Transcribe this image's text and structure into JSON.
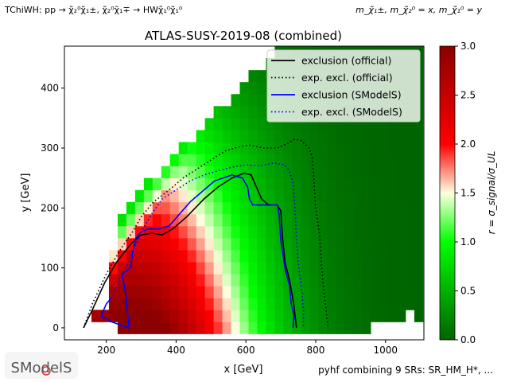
{
  "header": {
    "process": "TChiWH: pp → χ̃₂⁰χ̃₁±, χ̃₂⁰χ̃₁∓ → HWχ̃₁⁰χ̃₁⁰",
    "mass_relation": "m_χ̃₁±, m_χ̃₂⁰ = x, m_χ̃₁⁰ = y"
  },
  "footer": {
    "combination": "pyhf combining 9 SRs: SR_HM_H*, ...",
    "logo_text": "SModelS"
  },
  "chart_data": {
    "type": "heatmap",
    "title": "ATLAS-SUSY-2019-08 (combined)",
    "xlabel": "x [GeV]",
    "ylabel": "y [GeV]",
    "xlim": [
      80,
      1110
    ],
    "ylim": [
      -20,
      470
    ],
    "x_ticks": [
      200,
      400,
      600,
      800,
      1000
    ],
    "y_ticks": [
      0,
      100,
      200,
      300,
      400
    ],
    "colorbar": {
      "label": "r = σ_signal/σ_UL",
      "range": [
        0,
        3.0
      ],
      "ticks": [
        "0.0",
        "0.5",
        "1.0",
        "1.5",
        "2.0",
        "2.5",
        "3.0"
      ],
      "colors": [
        "#006400",
        "#00ff00",
        "#ffffe0",
        "#ff0000",
        "#8b0000"
      ]
    },
    "grid": false,
    "legend_position": "top-right",
    "legend": [
      {
        "label": "exclusion (official)",
        "color": "#000000",
        "style": "solid"
      },
      {
        "label": "exp. excl. (official)",
        "color": "#000000",
        "style": "dotted"
      },
      {
        "label": "exclusion (SModelS)",
        "color": "#0000ff",
        "style": "solid"
      },
      {
        "label": "exp. excl. (SModelS)",
        "color": "#0000ff",
        "style": "dotted"
      }
    ],
    "grid_cells": {
      "x_step": 25,
      "y_step": 20,
      "description": "r on a 25 GeV x 20 GeV grid"
    },
    "series": [
      {
        "name": "exclusion (official)",
        "color": "#000000",
        "style": "solid",
        "points": [
          [
            135,
            0
          ],
          [
            160,
            30
          ],
          [
            195,
            75
          ],
          [
            230,
            110
          ],
          [
            270,
            140
          ],
          [
            300,
            155
          ],
          [
            330,
            158
          ],
          [
            360,
            155
          ],
          [
            390,
            165
          ],
          [
            430,
            185
          ],
          [
            480,
            215
          ],
          [
            520,
            235
          ],
          [
            560,
            250
          ],
          [
            595,
            258
          ],
          [
            615,
            255
          ],
          [
            630,
            235
          ],
          [
            645,
            215
          ],
          [
            665,
            205
          ],
          [
            690,
            205
          ],
          [
            700,
            195
          ],
          [
            705,
            150
          ],
          [
            712,
            110
          ],
          [
            725,
            80
          ],
          [
            737,
            40
          ],
          [
            745,
            0
          ]
        ]
      },
      {
        "name": "exp. excl. (official)",
        "color": "#000000",
        "style": "dotted",
        "points": [
          [
            135,
            0
          ],
          [
            160,
            40
          ],
          [
            200,
            90
          ],
          [
            240,
            130
          ],
          [
            275,
            160
          ],
          [
            300,
            185
          ],
          [
            335,
            210
          ],
          [
            380,
            230
          ],
          [
            420,
            250
          ],
          [
            460,
            265
          ],
          [
            500,
            280
          ],
          [
            540,
            295
          ],
          [
            580,
            302
          ],
          [
            610,
            305
          ],
          [
            650,
            300
          ],
          [
            690,
            300
          ],
          [
            720,
            308
          ],
          [
            740,
            315
          ],
          [
            760,
            312
          ],
          [
            780,
            300
          ],
          [
            790,
            285
          ],
          [
            795,
            245
          ],
          [
            800,
            200
          ],
          [
            810,
            160
          ],
          [
            815,
            120
          ],
          [
            820,
            80
          ],
          [
            828,
            40
          ],
          [
            835,
            0
          ]
        ]
      },
      {
        "name": "exclusion (SModelS)",
        "color": "#0000ff",
        "style": "solid",
        "points": [
          [
            215,
            50
          ],
          [
            200,
            40
          ],
          [
            185,
            20
          ],
          [
            215,
            10
          ],
          [
            240,
            5
          ],
          [
            265,
            0
          ],
          [
            260,
            30
          ],
          [
            255,
            60
          ],
          [
            245,
            90
          ],
          [
            270,
            100
          ],
          [
            275,
            125
          ],
          [
            285,
            150
          ],
          [
            300,
            160
          ],
          [
            320,
            165
          ],
          [
            350,
            165
          ],
          [
            380,
            170
          ],
          [
            410,
            190
          ],
          [
            440,
            210
          ],
          [
            470,
            225
          ],
          [
            510,
            245
          ],
          [
            560,
            255
          ],
          [
            590,
            250
          ],
          [
            605,
            235
          ],
          [
            610,
            215
          ],
          [
            620,
            205
          ],
          [
            650,
            205
          ],
          [
            690,
            205
          ],
          [
            695,
            190
          ],
          [
            700,
            145
          ],
          [
            712,
            100
          ],
          [
            725,
            70
          ],
          [
            730,
            40
          ],
          [
            738,
            20
          ],
          [
            735,
            0
          ]
        ]
      },
      {
        "name": "exp. excl. (SModelS)",
        "color": "#0000ff",
        "style": "dotted",
        "points": [
          [
            215,
            50
          ],
          [
            240,
            80
          ],
          [
            270,
            120
          ],
          [
            300,
            160
          ],
          [
            330,
            190
          ],
          [
            360,
            215
          ],
          [
            400,
            230
          ],
          [
            440,
            245
          ],
          [
            480,
            255
          ],
          [
            520,
            262
          ],
          [
            560,
            268
          ],
          [
            600,
            272
          ],
          [
            640,
            270
          ],
          [
            680,
            275
          ],
          [
            710,
            272
          ],
          [
            725,
            262
          ],
          [
            735,
            240
          ],
          [
            740,
            205
          ],
          [
            745,
            150
          ],
          [
            750,
            110
          ],
          [
            758,
            70
          ],
          [
            765,
            30
          ],
          [
            765,
            0
          ]
        ]
      }
    ]
  }
}
